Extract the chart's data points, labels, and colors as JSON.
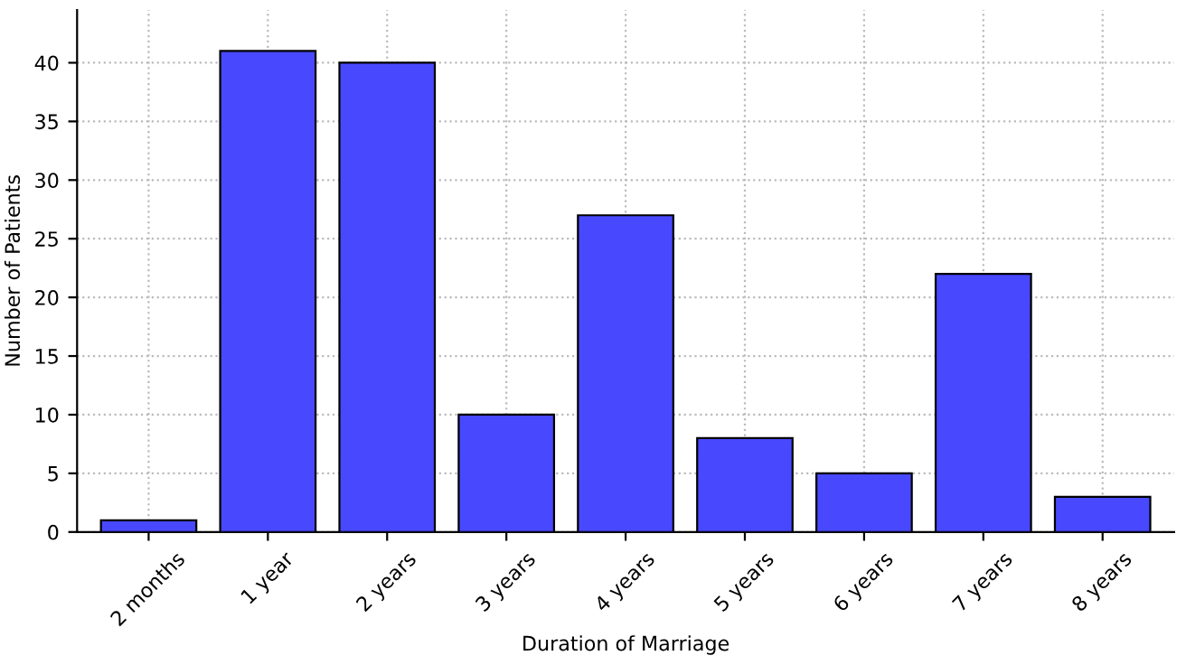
{
  "chart_data": {
    "type": "bar",
    "xlabel": "Duration of Marriage",
    "ylabel": "Number of Patients",
    "categories": [
      "2 months",
      "1 year",
      "2 years",
      "3 years",
      "4 years",
      "5 years",
      "6 years",
      "7 years",
      "8 years"
    ],
    "values": [
      1,
      41,
      40,
      10,
      27,
      8,
      5,
      22,
      3
    ],
    "color": "#4848ff",
    "ylim": [
      0,
      44.5
    ],
    "yticks": [
      0,
      5,
      10,
      15,
      20,
      25,
      30,
      35,
      40
    ],
    "grid": true
  }
}
